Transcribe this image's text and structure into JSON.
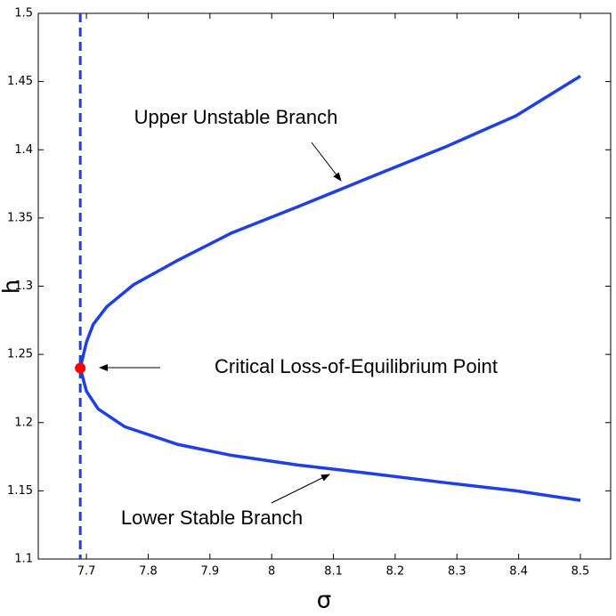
{
  "chart_data": {
    "type": "line",
    "xlabel": "σ",
    "ylabel": "h",
    "series": [
      {
        "color": "#1f3fe6",
        "x": [
          8.5,
          8.396,
          8.281,
          8.155,
          8.041,
          7.935,
          7.848,
          7.762,
          7.719,
          7.7,
          7.69,
          7.7,
          7.711,
          7.733,
          7.776,
          7.848,
          7.935,
          8.041,
          8.155,
          8.281,
          8.396,
          8.5
        ],
        "values": [
          1.143,
          1.15,
          1.156,
          1.163,
          1.169,
          1.176,
          1.184,
          1.197,
          1.21,
          1.223,
          1.24,
          1.259,
          1.272,
          1.285,
          1.301,
          1.319,
          1.339,
          1.358,
          1.379,
          1.402,
          1.425,
          1.454
        ]
      }
    ],
    "vline": {
      "x": 7.69,
      "color": "#1f3fe6",
      "dashed": true
    },
    "point": {
      "x": 7.69,
      "y": 1.24,
      "color": "#ff0000"
    },
    "annotations": [
      "Upper Unstable Branch",
      "Critical Loss-of-Equilibrium Point",
      "Lower Stable Branch"
    ],
    "xlim": [
      7.622,
      8.549
    ],
    "ylim": [
      1.1,
      1.5
    ],
    "xticks": [
      7.7,
      7.8,
      7.9,
      8,
      8.1,
      8.2,
      8.3,
      8.4,
      8.5
    ],
    "yticks": [
      1.1,
      1.15,
      1.2,
      1.25,
      1.3,
      1.35,
      1.4,
      1.45,
      1.5
    ]
  }
}
